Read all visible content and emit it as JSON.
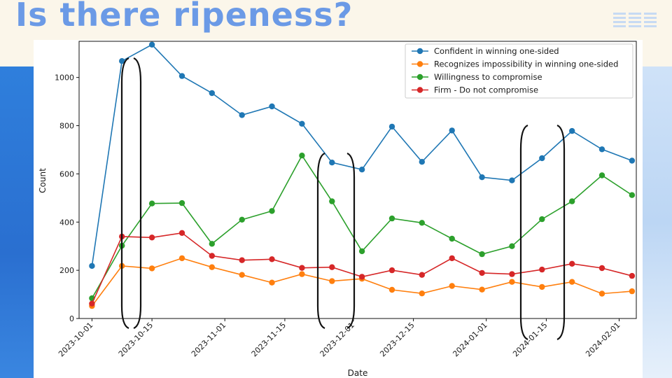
{
  "slide": {
    "title": "Is there ripeness?"
  },
  "chart_data": {
    "type": "line",
    "title": "",
    "xlabel": "Date",
    "ylabel": "Count",
    "ylim": [
      0,
      1150
    ],
    "xlim": [
      "2023-09-28",
      "2024-02-05"
    ],
    "grid": false,
    "legend_position": "top-right",
    "yticks": [
      0,
      200,
      400,
      600,
      800,
      1000
    ],
    "xticks": [
      "2023-10-01",
      "2023-10-15",
      "2023-11-01",
      "2023-11-15",
      "2023-12-01",
      "2023-12-15",
      "2024-01-01",
      "2024-01-15",
      "2024-02-01"
    ],
    "x": [
      "2023-10-01",
      "2023-10-08",
      "2023-10-15",
      "2023-10-22",
      "2023-10-29",
      "2023-11-05",
      "2023-11-12",
      "2023-11-19",
      "2023-11-26",
      "2023-12-03",
      "2023-12-10",
      "2023-12-17",
      "2023-12-24",
      "2023-12-31",
      "2024-01-07",
      "2024-01-14",
      "2024-01-21",
      "2024-01-28",
      "2024-02-04"
    ],
    "series": [
      {
        "name": "Confident in winning one-sided",
        "color": "#1f77b4",
        "values": [
          218,
          1068,
          1136,
          1006,
          935,
          844,
          880,
          808,
          647,
          618,
          796,
          650,
          780,
          586,
          573,
          665,
          778,
          702,
          655
        ]
      },
      {
        "name": "Recognizes impossibility in winning one-sided",
        "color": "#ff7f0e",
        "values": [
          52,
          218,
          208,
          250,
          213,
          181,
          149,
          184,
          155,
          165,
          119,
          104,
          135,
          120,
          152,
          131,
          152,
          103,
          113
        ]
      },
      {
        "name": "Willingness to compromise",
        "color": "#2ca02c",
        "values": [
          84,
          302,
          477,
          479,
          310,
          410,
          446,
          676,
          486,
          279,
          415,
          397,
          331,
          267,
          300,
          412,
          486,
          594,
          512
        ]
      },
      {
        "name": "Firm - Do not compromise",
        "color": "#d62728",
        "values": [
          62,
          340,
          336,
          355,
          260,
          242,
          246,
          210,
          213,
          173,
          200,
          181,
          250,
          189,
          184,
          203,
          227,
          209,
          177
        ]
      }
    ]
  }
}
